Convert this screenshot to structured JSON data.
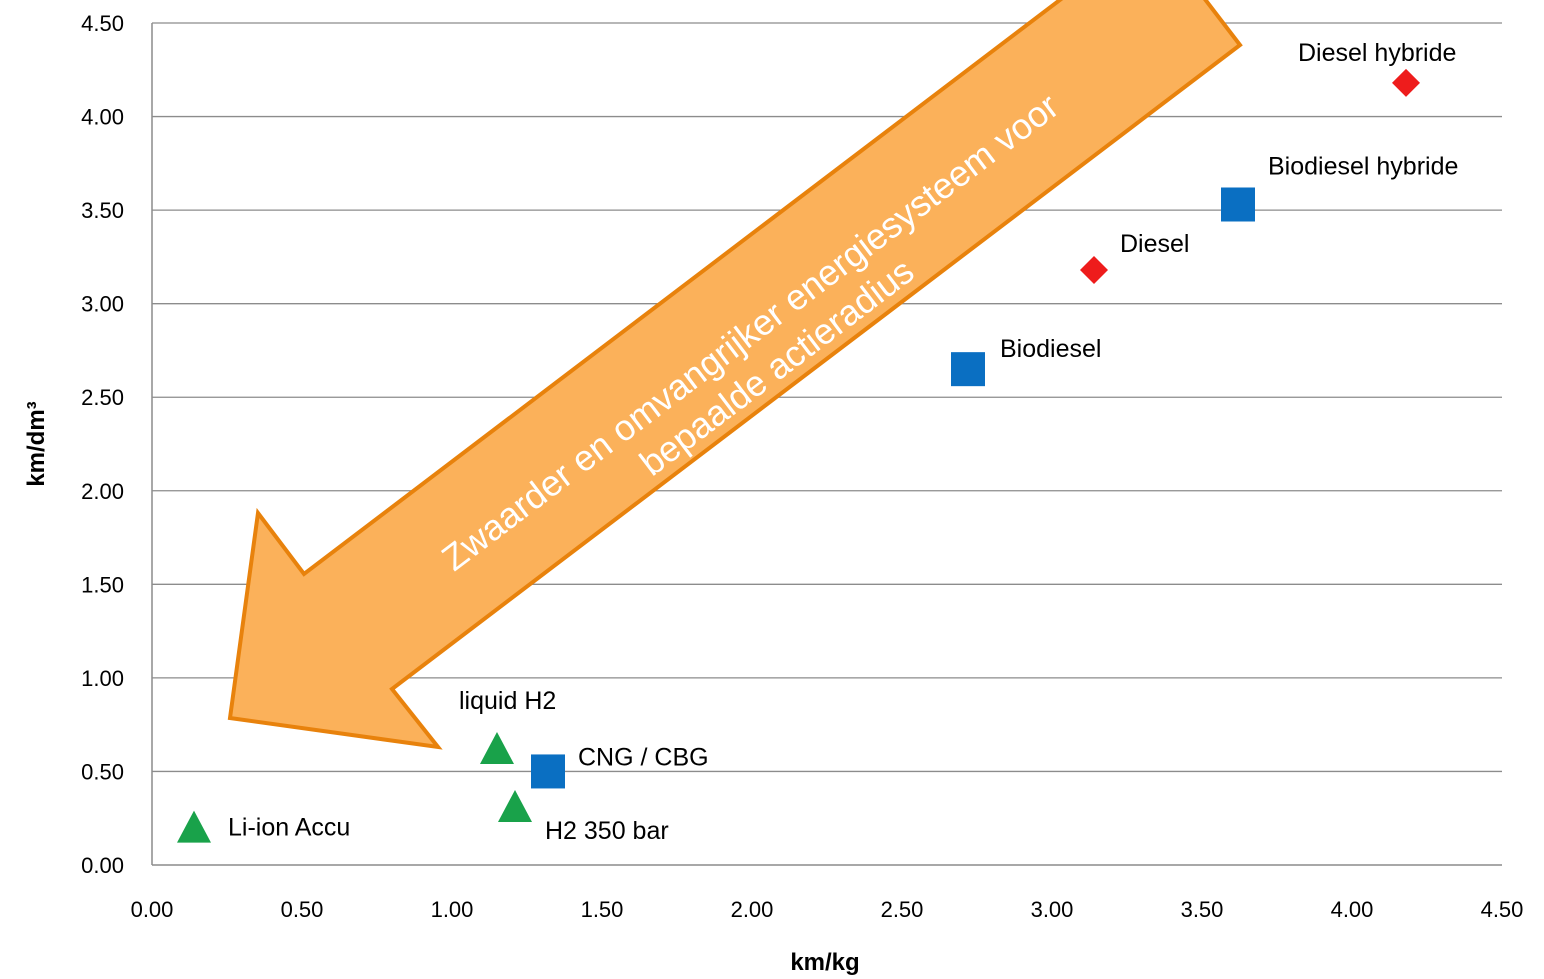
{
  "chart_data": {
    "type": "scatter",
    "xlabel": "km/kg",
    "ylabel": "km/dm³",
    "xlim": [
      0,
      4.5
    ],
    "ylim": [
      0,
      4.5
    ],
    "x_ticks": [
      "0.00",
      "0.50",
      "1.00",
      "1.50",
      "2.00",
      "2.50",
      "3.00",
      "3.50",
      "4.00",
      "4.50"
    ],
    "y_ticks": [
      "0.00",
      "0.50",
      "1.00",
      "1.50",
      "2.00",
      "2.50",
      "3.00",
      "3.50",
      "4.00",
      "4.50"
    ],
    "grid": "horizontal",
    "legend": "none",
    "points": [
      {
        "label": "Diesel hybride",
        "x": 4.18,
        "y": 4.18,
        "marker": "diamond",
        "color": "#ee1c1c"
      },
      {
        "label": "Diesel",
        "x": 3.14,
        "y": 3.18,
        "marker": "diamond",
        "color": "#ee1c1c"
      },
      {
        "label": "Biodiesel hybride",
        "x": 3.62,
        "y": 3.53,
        "marker": "square",
        "color": "#0a6fc2"
      },
      {
        "label": "Biodiesel",
        "x": 2.72,
        "y": 2.65,
        "marker": "square",
        "color": "#0a6fc2"
      },
      {
        "label": "CNG / CBG",
        "x": 1.32,
        "y": 0.5,
        "marker": "square",
        "color": "#0a6fc2"
      },
      {
        "label": "liquid H2",
        "x": 1.15,
        "y": 0.62,
        "marker": "triangle",
        "color": "#19a24a"
      },
      {
        "label": "H2 350 bar",
        "x": 1.21,
        "y": 0.31,
        "marker": "triangle",
        "color": "#19a24a"
      },
      {
        "label": "Li-ion Accu",
        "x": 0.14,
        "y": 0.2,
        "marker": "triangle",
        "color": "#19a24a"
      }
    ],
    "annotation": {
      "lines": [
        "Zwaarder en omvangrijker energiesysteem voor",
        "bepaalde actieradius"
      ],
      "fill": "#fbb15a",
      "stroke": "#e8820c"
    }
  }
}
